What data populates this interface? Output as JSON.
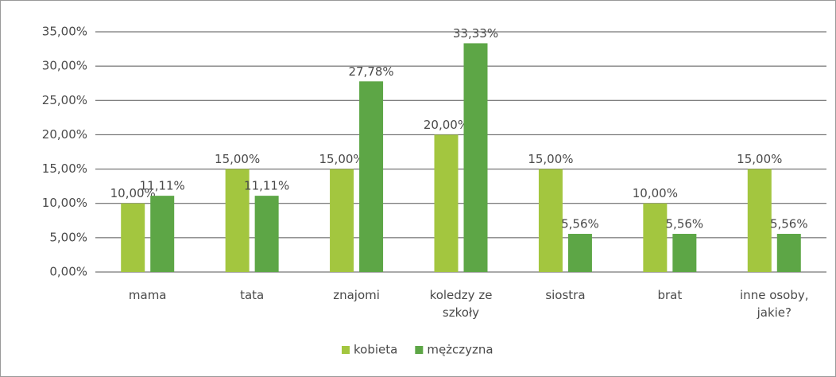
{
  "chart_data": {
    "type": "bar",
    "categories": [
      "mama",
      "tata",
      "znajomi",
      "koledzy ze szkoły",
      "siostra",
      "brat",
      "inne osoby, jakie?"
    ],
    "series": [
      {
        "name": "kobieta",
        "color": "#a3c63f",
        "values": [
          10,
          15,
          15,
          20,
          15,
          10,
          15
        ],
        "value_labels": [
          "10,00%",
          "15,00%",
          "15,00%",
          "20,00%",
          "15,00%",
          "10,00%",
          "15,00%"
        ]
      },
      {
        "name": "mężczyzna",
        "color": "#5da646",
        "values": [
          11.11,
          11.11,
          27.78,
          33.33,
          5.56,
          5.56,
          5.56
        ],
        "value_labels": [
          "11,11%",
          "11,11%",
          "27,78%",
          "33,33%",
          "5,56%",
          "5,56%",
          "5,56%"
        ]
      }
    ],
    "ylim": [
      0,
      35
    ],
    "yticks": [
      {
        "value": 0,
        "label": "0,00%"
      },
      {
        "value": 5,
        "label": "5,00%"
      },
      {
        "value": 10,
        "label": "10,00%"
      },
      {
        "value": 15,
        "label": "15,00%"
      },
      {
        "value": 20,
        "label": "20,00%"
      },
      {
        "value": 25,
        "label": "25,00%"
      },
      {
        "value": 30,
        "label": "30,00%"
      },
      {
        "value": 35,
        "label": "35,00%"
      }
    ],
    "grid": true,
    "legend": "bottom"
  }
}
